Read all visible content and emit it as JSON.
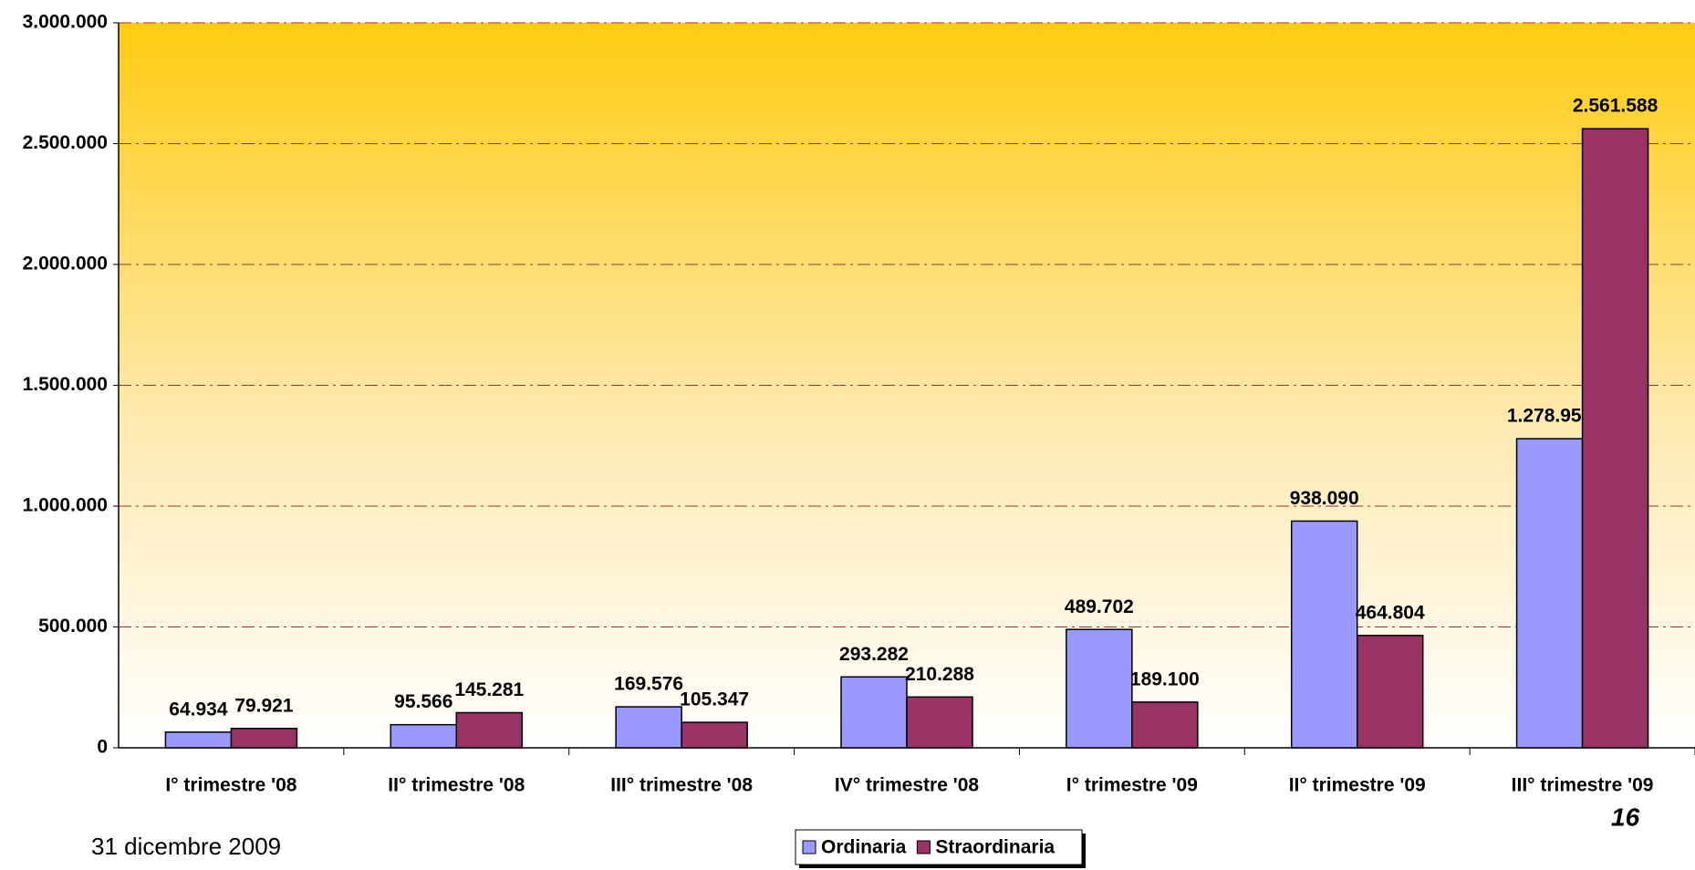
{
  "chart_data": {
    "type": "bar",
    "categories": [
      "I° trimestre '08",
      "II° trimestre '08",
      "III° trimestre '08",
      "IV° trimestre '08",
      "I° trimestre '09",
      "II° trimestre '09",
      "III° trimestre '09"
    ],
    "series": [
      {
        "name": "Ordinaria",
        "color": "#9999ff",
        "values": [
          64934,
          95566,
          169576,
          293282,
          489702,
          938090,
          1278953
        ],
        "value_labels": [
          "64.934",
          "95.566",
          "169.576",
          "293.282",
          "489.702",
          "938.090",
          "1.278.953"
        ]
      },
      {
        "name": "Straordinaria",
        "color": "#993366",
        "values": [
          79921,
          145281,
          105347,
          210288,
          189100,
          464804,
          2561588
        ],
        "value_labels": [
          "79.921",
          "145.281",
          "105.347",
          "210.288",
          "189.100",
          "464.804",
          "2.561.588"
        ]
      }
    ],
    "ylim": [
      0,
      3000000
    ],
    "yticks": [
      0,
      {
        "value": 500000,
        "label": "500.000"
      },
      {
        "value": 1000000,
        "label": "1.000.000"
      },
      {
        "value": 1500000,
        "label": "1.500.000"
      },
      {
        "value": 2000000,
        "label": "2.000.000"
      },
      {
        "value": 2500000,
        "label": "2.500.000"
      },
      {
        "value": 3000000,
        "label": "3.000.000"
      }
    ],
    "grid": true,
    "legend": "bottom"
  },
  "footer": {
    "date": "31 dicembre 2009",
    "page": "16"
  }
}
